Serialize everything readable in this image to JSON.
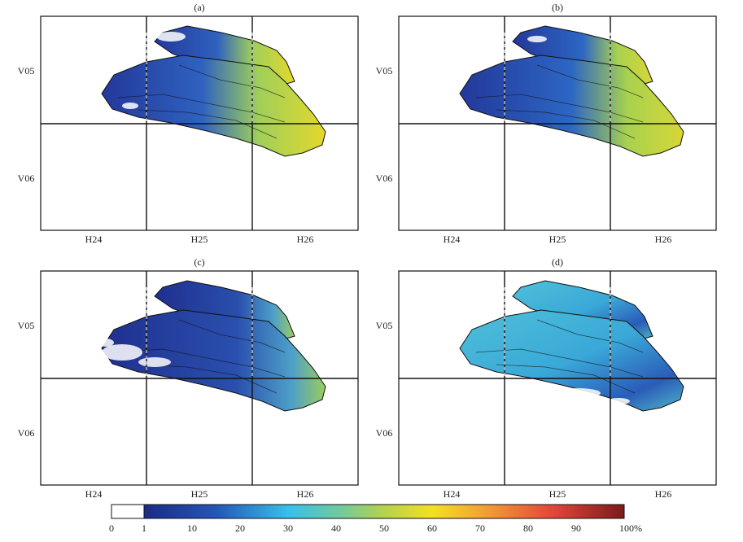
{
  "panels": [
    {
      "label": "(a)",
      "columns": [
        "H24",
        "H25",
        "H26"
      ],
      "rows": [
        "V05",
        "V06"
      ]
    },
    {
      "label": "(b)",
      "columns": [
        "H24",
        "H25",
        "H26"
      ],
      "rows": [
        "V05",
        "V06"
      ]
    },
    {
      "label": "(c)",
      "columns": [
        "H24",
        "H25",
        "H26"
      ],
      "rows": [
        "V05",
        "V06"
      ]
    },
    {
      "label": "(d)",
      "columns": [
        "H24",
        "H25",
        "H26"
      ],
      "rows": [
        "V05",
        "V06"
      ]
    }
  ],
  "colorbar": {
    "tick_labels": [
      "0",
      "1",
      "10",
      "20",
      "30",
      "40",
      "50",
      "60",
      "70",
      "80",
      "90",
      "100%"
    ]
  }
}
